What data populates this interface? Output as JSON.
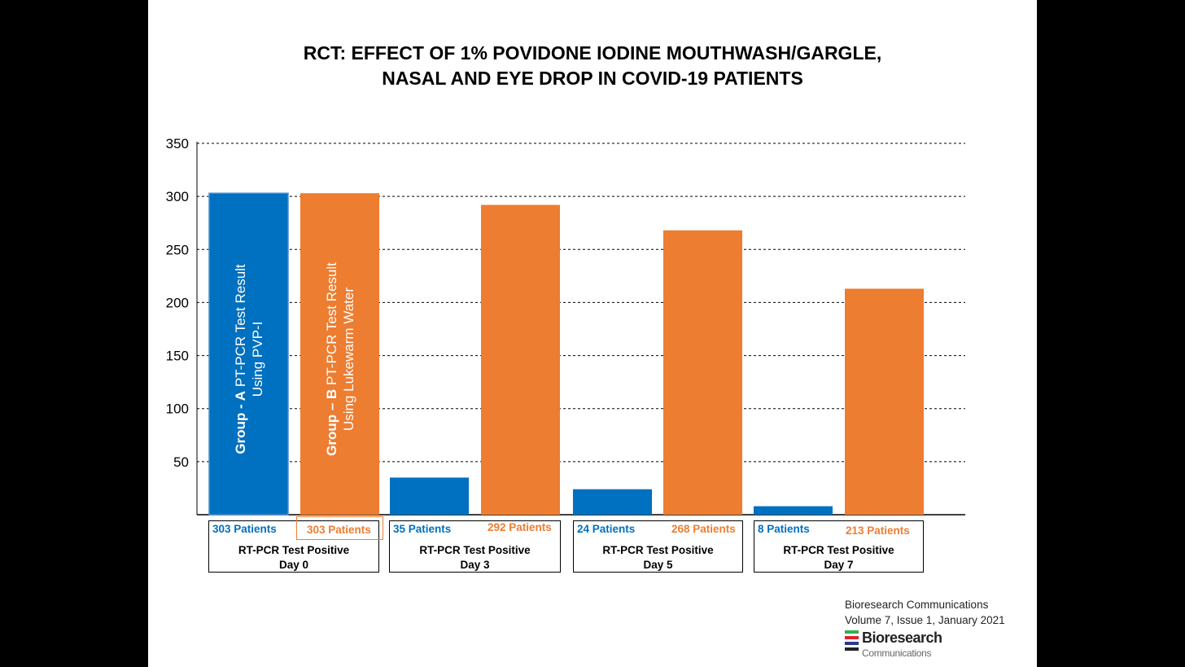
{
  "title": {
    "line1": "RCT: EFFECT OF 1% POVIDONE IODINE MOUTHWASH/GARGLE,",
    "line2": "NASAL AND EYE DROP IN COVID-19 PATIENTS"
  },
  "colors": {
    "group_a": "#0070c0",
    "group_b": "#ed7d31"
  },
  "chart_data": {
    "type": "bar",
    "title": "RCT: EFFECT OF 1% POVIDONE IODINE MOUTHWASH/GARGLE, NASAL AND EYE DROP IN COVID-19 PATIENTS",
    "categories": [
      "Day 0",
      "Day 3",
      "Day 5",
      "Day 7"
    ],
    "series": [
      {
        "name": "Group - A PT-PCR Test Result Using PVP-I",
        "values": [
          303,
          35,
          24,
          8
        ]
      },
      {
        "name": "Group – B PT-PCR Test Result Using Lukewarm Water",
        "values": [
          303,
          292,
          268,
          213
        ]
      }
    ],
    "yticks": [
      50,
      100,
      150,
      200,
      250,
      300,
      350
    ],
    "ylim": [
      0,
      350
    ],
    "grid": true,
    "xlabel": "",
    "ylabel": "",
    "bar_labels": {
      "group_a": {
        "bold": "Group - A",
        "rest": " PT-PCR Test Result",
        "line2": "Using PVP-I"
      },
      "group_b": {
        "bold": "Group – B",
        "rest": " PT-PCR Test Result",
        "line2": "Using Lukewarm Water"
      }
    }
  },
  "category_boxes": [
    {
      "a": "303 Patients",
      "b": "303 Patients",
      "line1": "RT-PCR Test Positive",
      "line2": "Day 0"
    },
    {
      "a": "35 Patients",
      "b": "292 Patients",
      "line1": "RT-PCR Test Positive",
      "line2": "Day 3"
    },
    {
      "a": "24 Patients",
      "b": "268 Patients",
      "line1": "RT-PCR Test Positive",
      "line2": "Day 5"
    },
    {
      "a": "8 Patients",
      "b": "213 Patients",
      "line1": "RT-PCR Test Positive",
      "line2": "Day 7"
    }
  ],
  "source": {
    "line1": "Bioresearch Communications",
    "line2": "Volume 7, Issue 1, January 2021"
  },
  "logo": {
    "name": "Bioresearch",
    "sub": "Communications"
  }
}
